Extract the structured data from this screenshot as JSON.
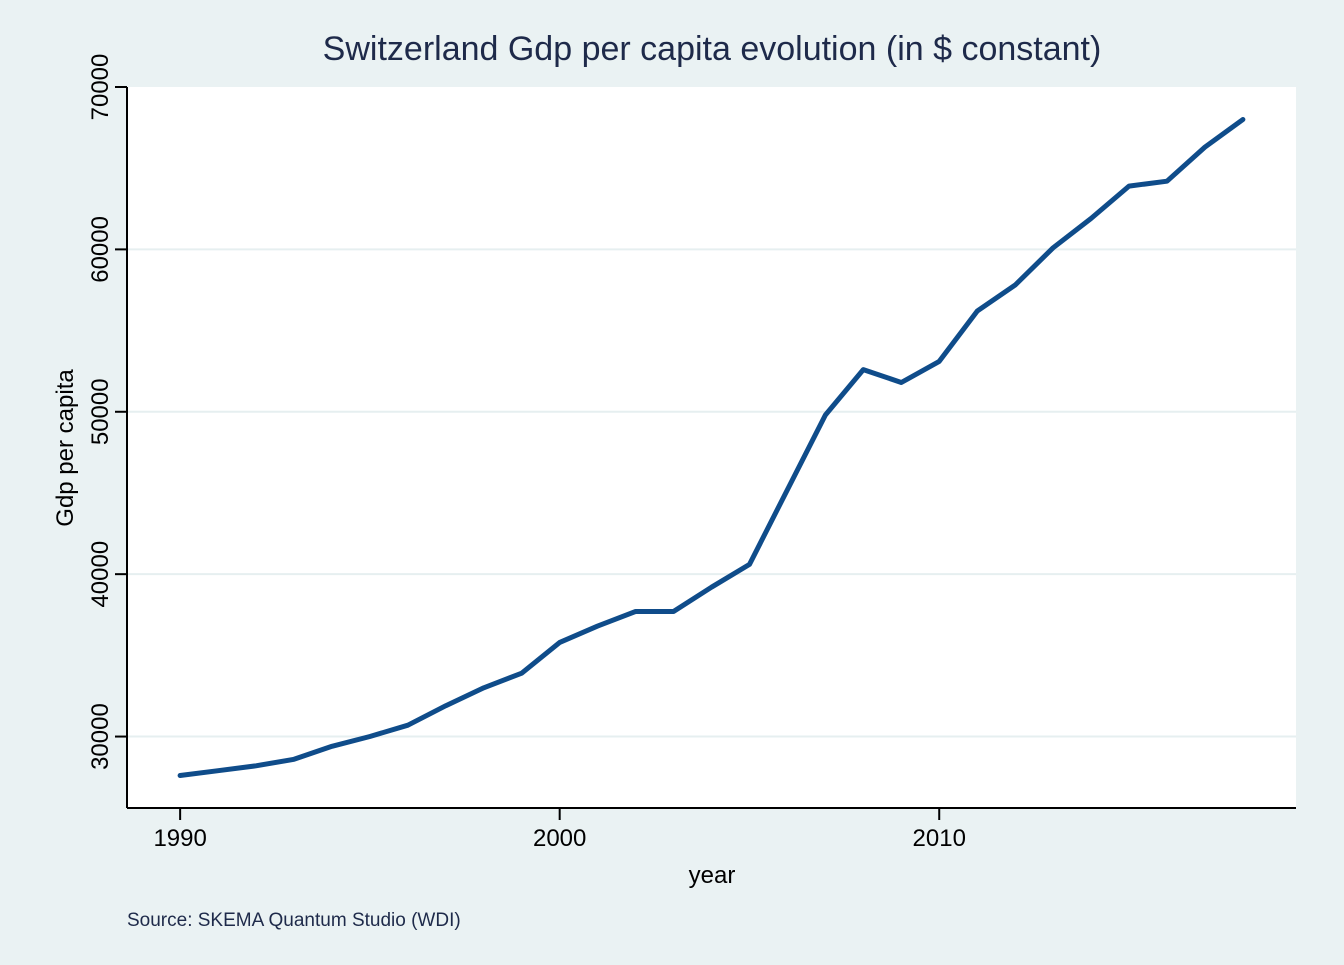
{
  "chart_data": {
    "type": "line",
    "title": "Switzerland Gdp per capita evolution (in $ constant)",
    "xlabel": "year",
    "ylabel": "Gdp per capita",
    "note": "Source: SKEMA Quantum Studio (WDI)",
    "xlim": [
      1988.6,
      2019.4
    ],
    "ylim": [
      25600,
      70000
    ],
    "x_ticks": [
      1990,
      2000,
      2010
    ],
    "y_ticks": [
      30000,
      40000,
      50000,
      60000,
      70000
    ],
    "x_tick_labels": [
      "1990",
      "2000",
      "2010"
    ],
    "y_tick_labels": [
      "30000",
      "40000",
      "50000",
      "60000",
      "70000"
    ],
    "grid": true,
    "series": [
      {
        "color": "#0f4c8a",
        "x": [
          1990,
          1991,
          1992,
          1993,
          1994,
          1995,
          1996,
          1997,
          1998,
          1999,
          2000,
          2001,
          2002,
          2003,
          2004,
          2005,
          2006,
          2007,
          2008,
          2009,
          2010,
          2011,
          2012,
          2013,
          2014,
          2015,
          2016,
          2017,
          2018
        ],
        "y": [
          27600,
          27900,
          28200,
          28600,
          29400,
          30000,
          30700,
          31900,
          33000,
          33900,
          35800,
          36800,
          37700,
          37700,
          39200,
          40600,
          45200,
          49800,
          52600,
          51800,
          53100,
          56200,
          57800,
          60100,
          61900,
          63900,
          64200,
          66300,
          68000
        ]
      }
    ]
  },
  "colors": {
    "background": "#eaf2f3",
    "plot_area": "#ffffff",
    "grid": "#e6eff0",
    "axis": "#000000",
    "title": "#1e2a4a",
    "line": "#0f4c8a"
  }
}
